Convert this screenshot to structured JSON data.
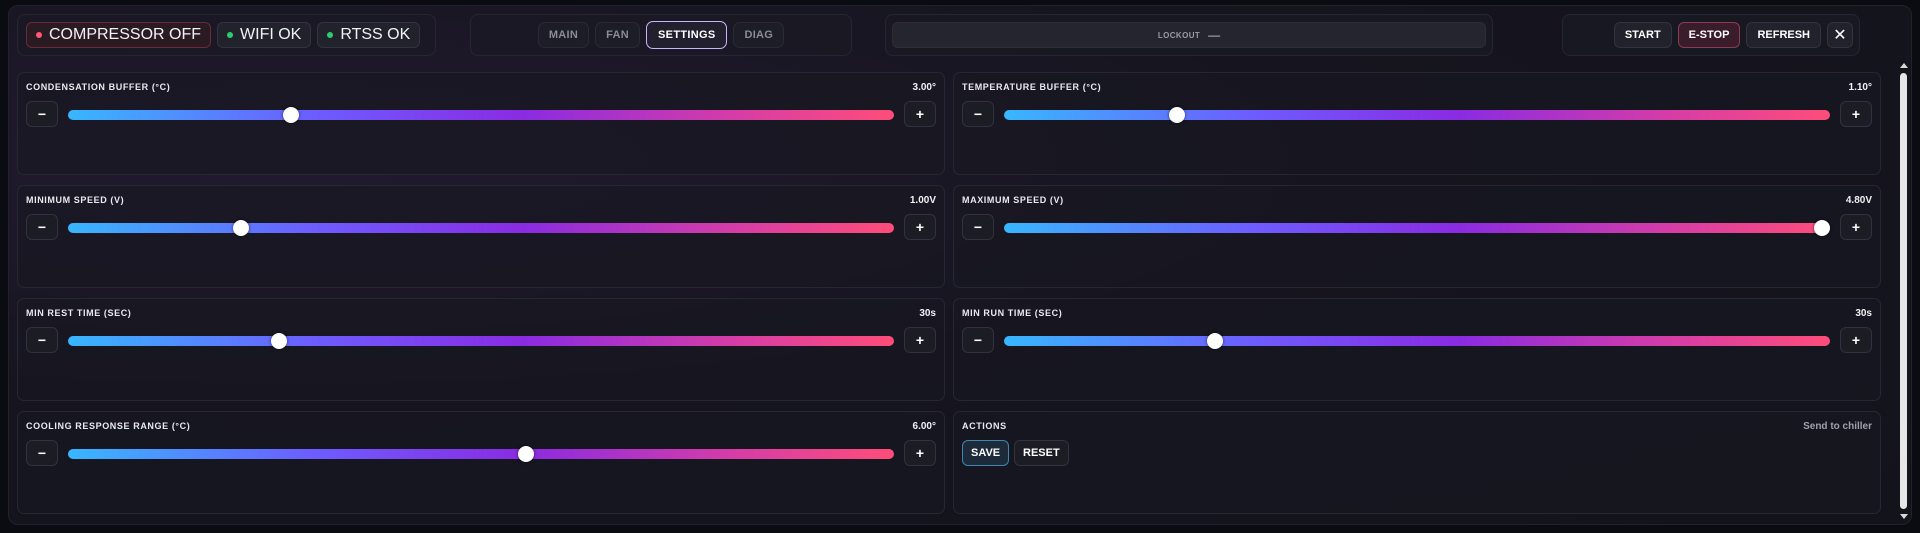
{
  "status": {
    "compressor": "COMPRESSOR OFF",
    "wifi": "WIFI OK",
    "rtss": "RTSS OK"
  },
  "tabs": {
    "main": "MAIN",
    "fan": "FAN",
    "settings": "SETTINGS",
    "diag": "DIAG",
    "active": "settings"
  },
  "lockout": {
    "label": "LOCKOUT",
    "value": "—"
  },
  "actions": {
    "start": "START",
    "estop": "E-STOP",
    "refresh": "REFRESH",
    "close": "✕"
  },
  "settings": [
    {
      "label": "CONDENSATION BUFFER (°C)",
      "value": "3.00°",
      "fraction": 0.27
    },
    {
      "label": "TEMPERATURE BUFFER (°C)",
      "value": "1.10°",
      "fraction": 0.21
    },
    {
      "label": "MINIMUM SPEED (V)",
      "value": "1.00V",
      "fraction": 0.21
    },
    {
      "label": "MAXIMUM SPEED (V)",
      "value": "4.80V",
      "fraction": 0.99
    },
    {
      "label": "MIN REST TIME (SEC)",
      "value": "30s",
      "fraction": 0.255
    },
    {
      "label": "MIN RUN TIME (SEC)",
      "value": "30s",
      "fraction": 0.255
    },
    {
      "label": "COOLING RESPONSE RANGE (°C)",
      "value": "6.00°",
      "fraction": 0.555
    }
  ],
  "controls": {
    "minus": "−",
    "plus": "+"
  },
  "actions_panel": {
    "title": "ACTIONS",
    "hint": "Send to chiller",
    "save": "SAVE",
    "reset": "RESET"
  },
  "colors": {
    "accent": "#cbb4ff",
    "status_off": "#ff5a72",
    "status_ok": "#2ecc71",
    "slider_start": "#38b7ff",
    "slider_mid": "#8a2be2",
    "slider_end": "#ff4d7a"
  }
}
